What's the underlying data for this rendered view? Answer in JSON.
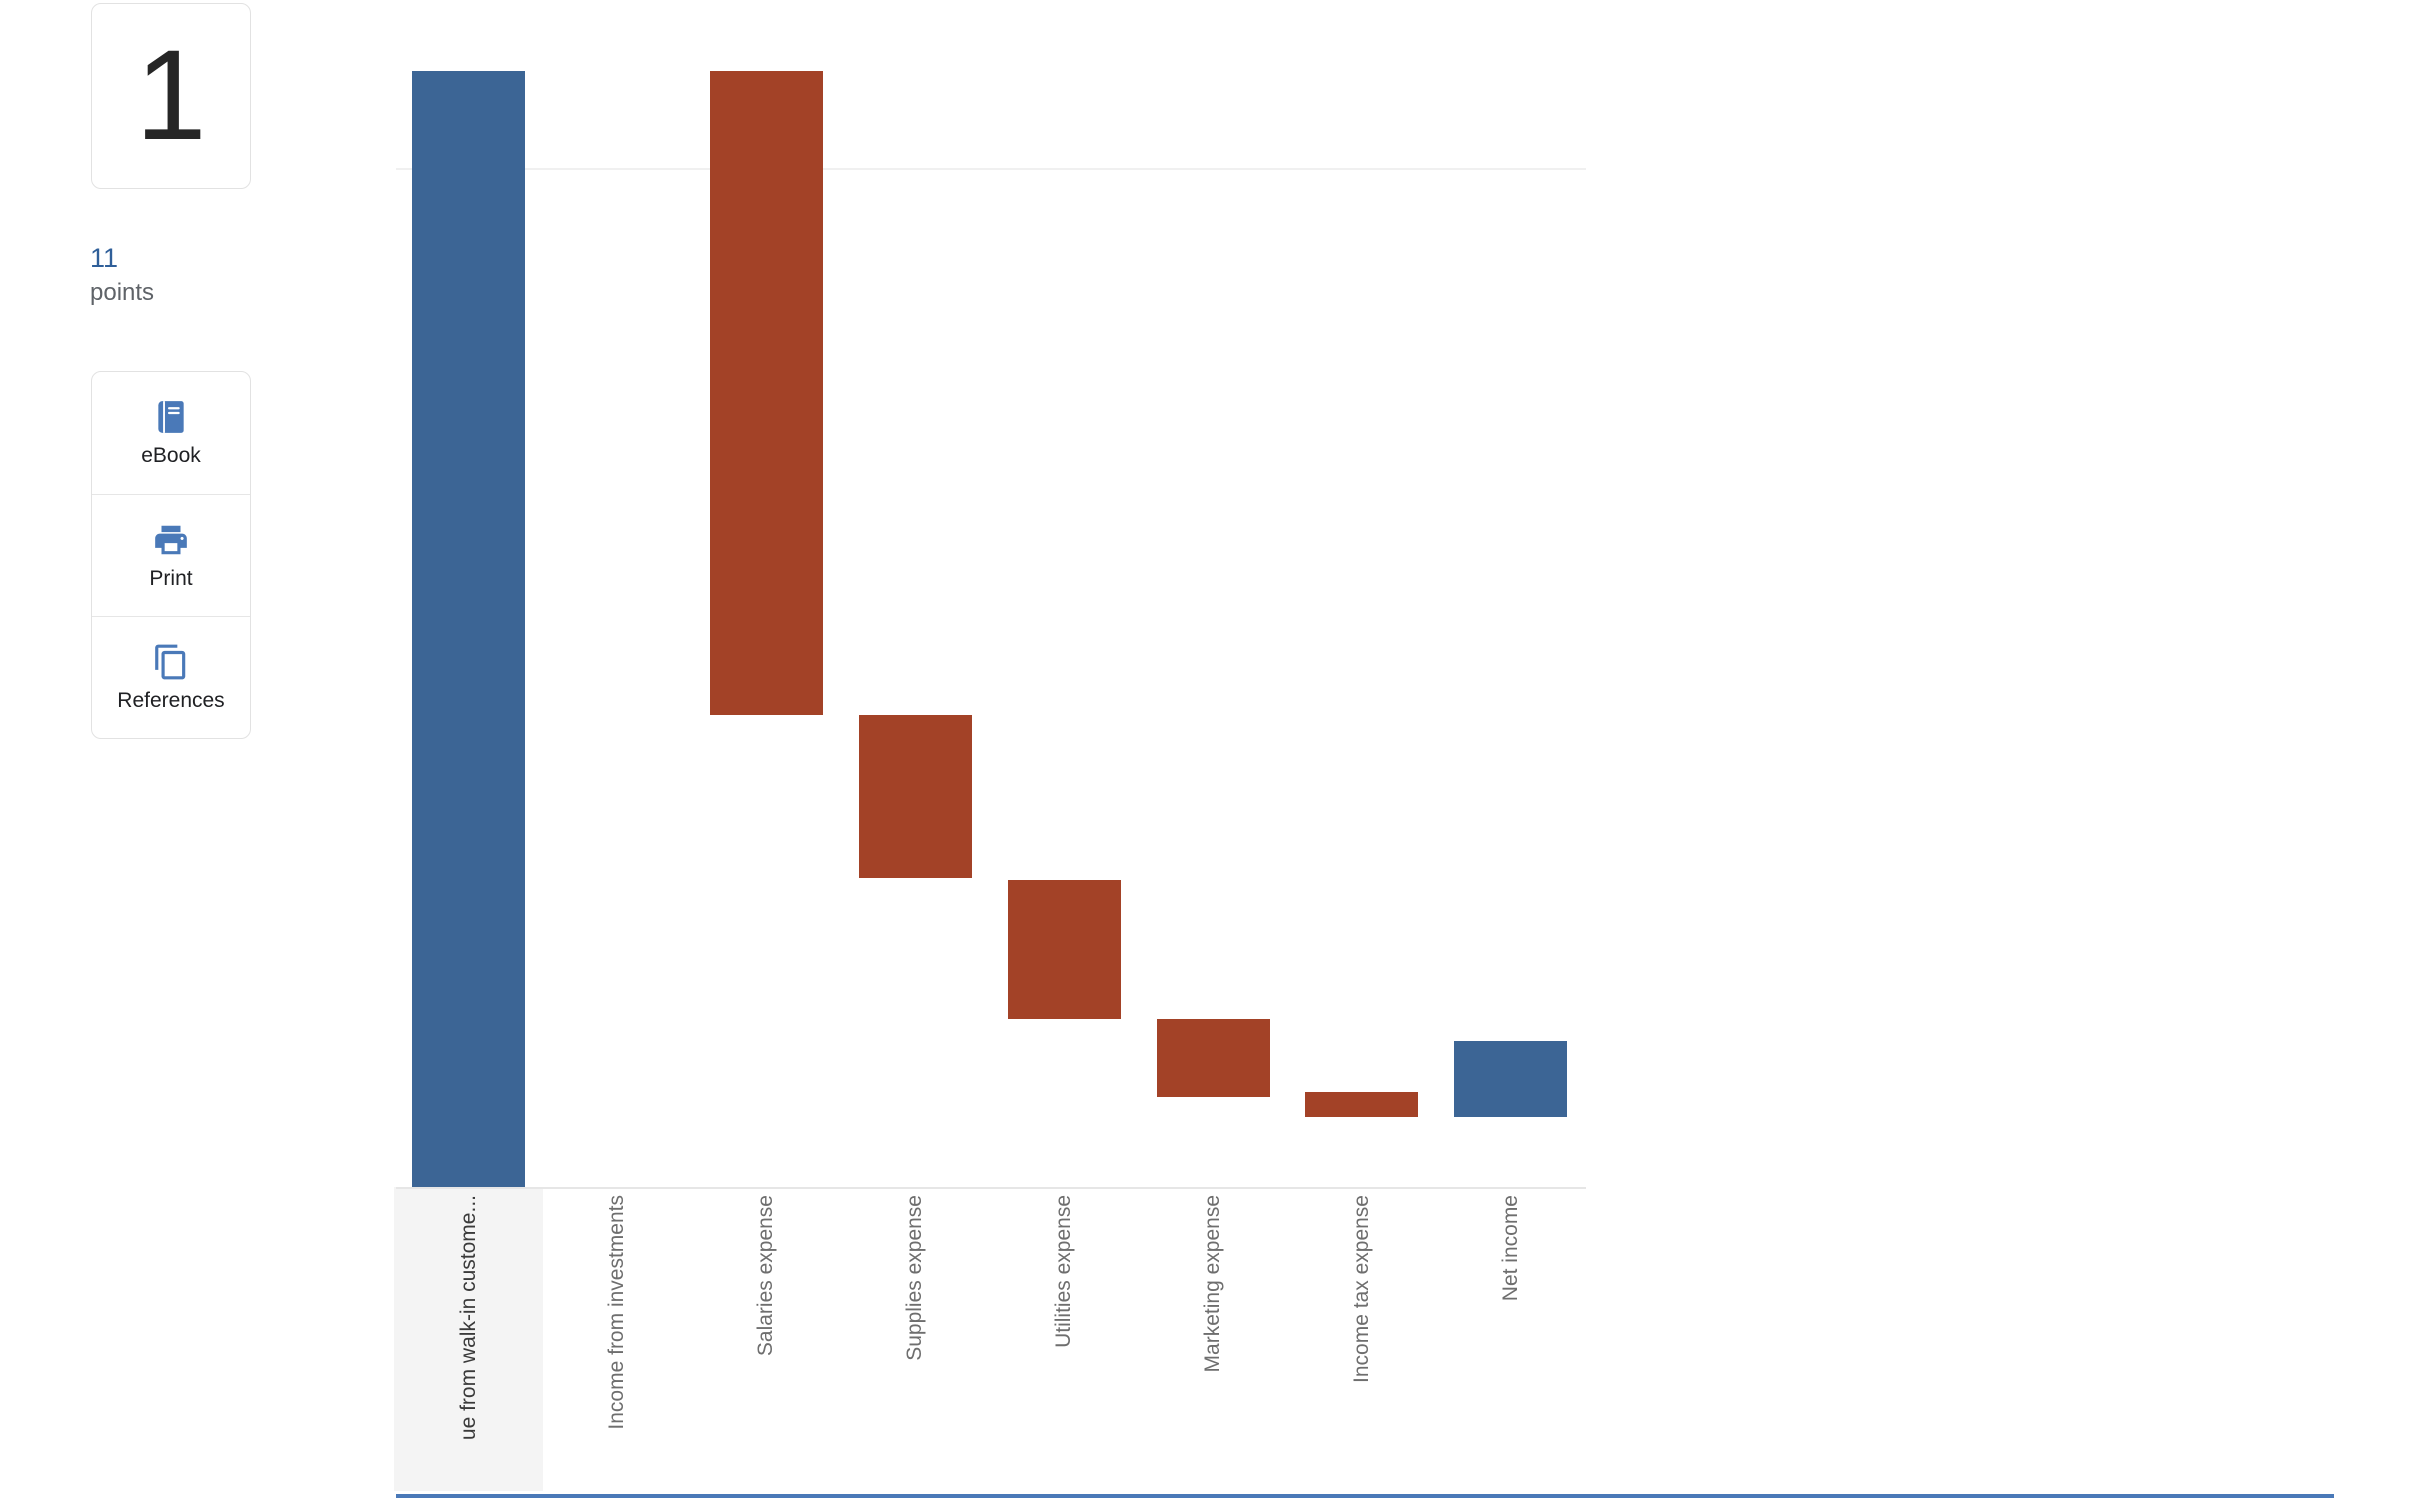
{
  "question_panel": {
    "number": "1",
    "points_value": "11",
    "points_label": "points"
  },
  "tools": {
    "ebook_label": "eBook",
    "print_label": "Print",
    "references_label": "References"
  },
  "colors": {
    "increase": "#3c6595",
    "decrease": "#a34227",
    "accent_blue": "#4a79b8",
    "points_blue": "#2f5f99",
    "highlight_bg": "#f4f4f4",
    "bottom_line": "#4a79b8"
  },
  "chart_data": {
    "type": "bar",
    "subtype": "waterfall",
    "title": "",
    "xlabel": "",
    "ylabel": "",
    "legend": "none",
    "grid": true,
    "ylim": [
      0,
      72500
    ],
    "values_estimated_from_pixels": true,
    "selected_category": 0,
    "categories": [
      "ue from walk-in custome...",
      "Income from investments",
      "Salaries expense",
      "Supplies expense",
      "Utilities expense",
      "Marketing expense",
      "Income tax expense",
      "Net income"
    ],
    "segments": [
      {
        "label": "ue from walk-in custome...",
        "start": 0,
        "end": 71900,
        "direction": "increase"
      },
      {
        "label": "Income from investments",
        "start": 71900,
        "end": 71900,
        "direction": "increase"
      },
      {
        "label": "Salaries expense",
        "start": 71900,
        "end": 30400,
        "direction": "decrease"
      },
      {
        "label": "Supplies expense",
        "start": 30400,
        "end": 19900,
        "direction": "decrease"
      },
      {
        "label": "Utilities expense",
        "start": 19800,
        "end": 10800,
        "direction": "decrease"
      },
      {
        "label": "Marketing expense",
        "start": 10800,
        "end": 5800,
        "direction": "decrease"
      },
      {
        "label": "Income tax expense",
        "start": 6100,
        "end": 4500,
        "direction": "decrease"
      },
      {
        "label": "Net income",
        "start": 9400,
        "end": 4500,
        "direction": "total"
      }
    ]
  }
}
